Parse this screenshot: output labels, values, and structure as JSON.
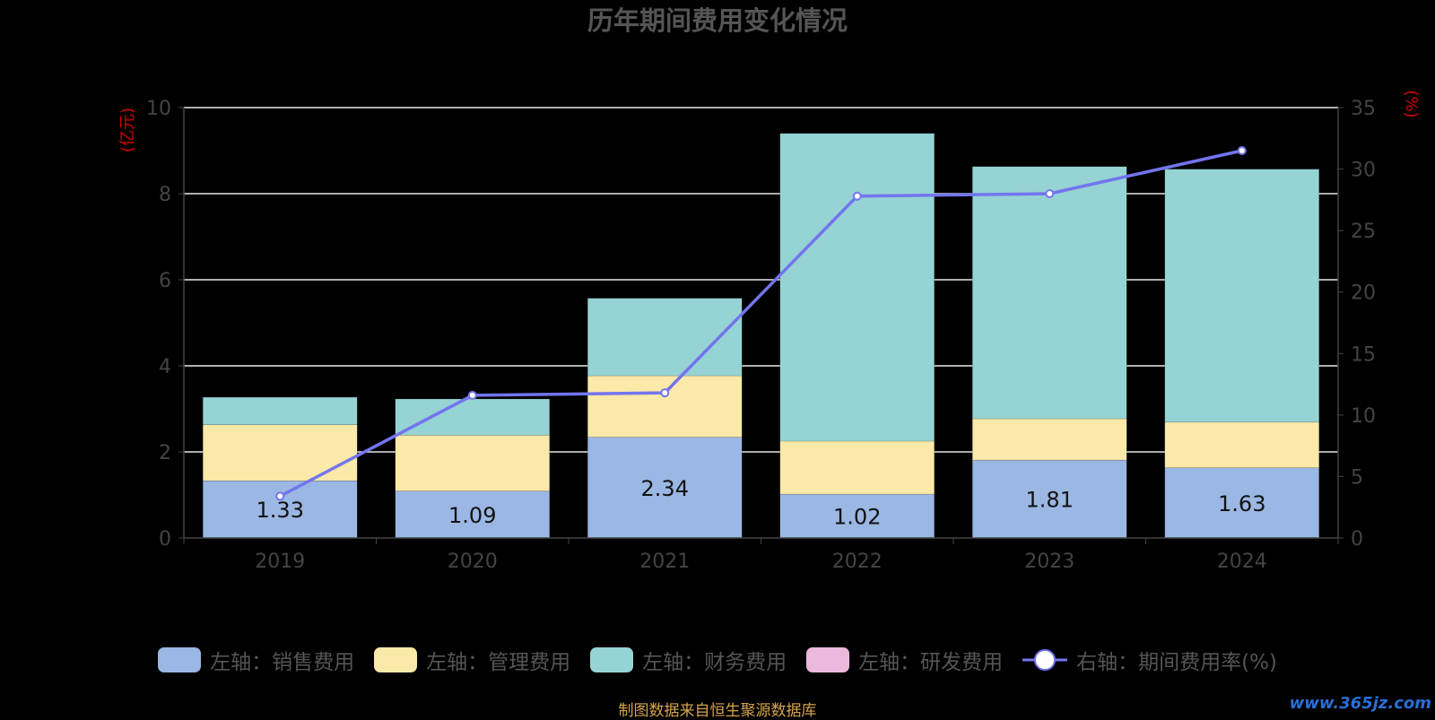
{
  "chart_data": {
    "type": "bar",
    "stacked": true,
    "title": "历年期间费用变化情况",
    "left_unit": "(亿元)",
    "right_unit": "(%)",
    "categories": [
      "2019",
      "2020",
      "2021",
      "2022",
      "2023",
      "2024"
    ],
    "ylim_left": [
      0,
      10
    ],
    "yticks_left": [
      0,
      2,
      4,
      6,
      8,
      10
    ],
    "ylim_right": [
      0,
      35
    ],
    "yticks_right": [
      0,
      5,
      10,
      15,
      20,
      25,
      30,
      35
    ],
    "grid": true,
    "legend_position": "bottom",
    "series": [
      {
        "name": "左轴：销售费用",
        "axis": "left",
        "color": "#9bb7e3",
        "values": [
          1.33,
          1.09,
          2.34,
          1.02,
          1.81,
          1.63
        ],
        "labels": [
          "1.33",
          "1.09",
          "2.34",
          "1.02",
          "1.81",
          "1.63"
        ]
      },
      {
        "name": "左轴：管理费用",
        "axis": "left",
        "color": "#fae9a8",
        "values": [
          1.3,
          1.3,
          1.43,
          1.23,
          0.96,
          1.06
        ]
      },
      {
        "name": "左轴：财务费用",
        "axis": "left",
        "color": "#96d3d4",
        "values": [
          0.64,
          0.84,
          1.8,
          7.15,
          5.86,
          5.88
        ]
      },
      {
        "name": "左轴：研发费用",
        "axis": "left",
        "color": "#eab9dc",
        "values": [
          0,
          0,
          0,
          0,
          0,
          0
        ]
      },
      {
        "name": "右轴：期间费用率(%)",
        "axis": "right",
        "type": "line",
        "color": "#7374ee",
        "values": [
          3.4,
          11.6,
          11.8,
          27.8,
          28.0,
          31.5
        ]
      }
    ]
  },
  "source_text": "制图数据来自恒生聚源数据库",
  "watermark": "www.365jz.com"
}
